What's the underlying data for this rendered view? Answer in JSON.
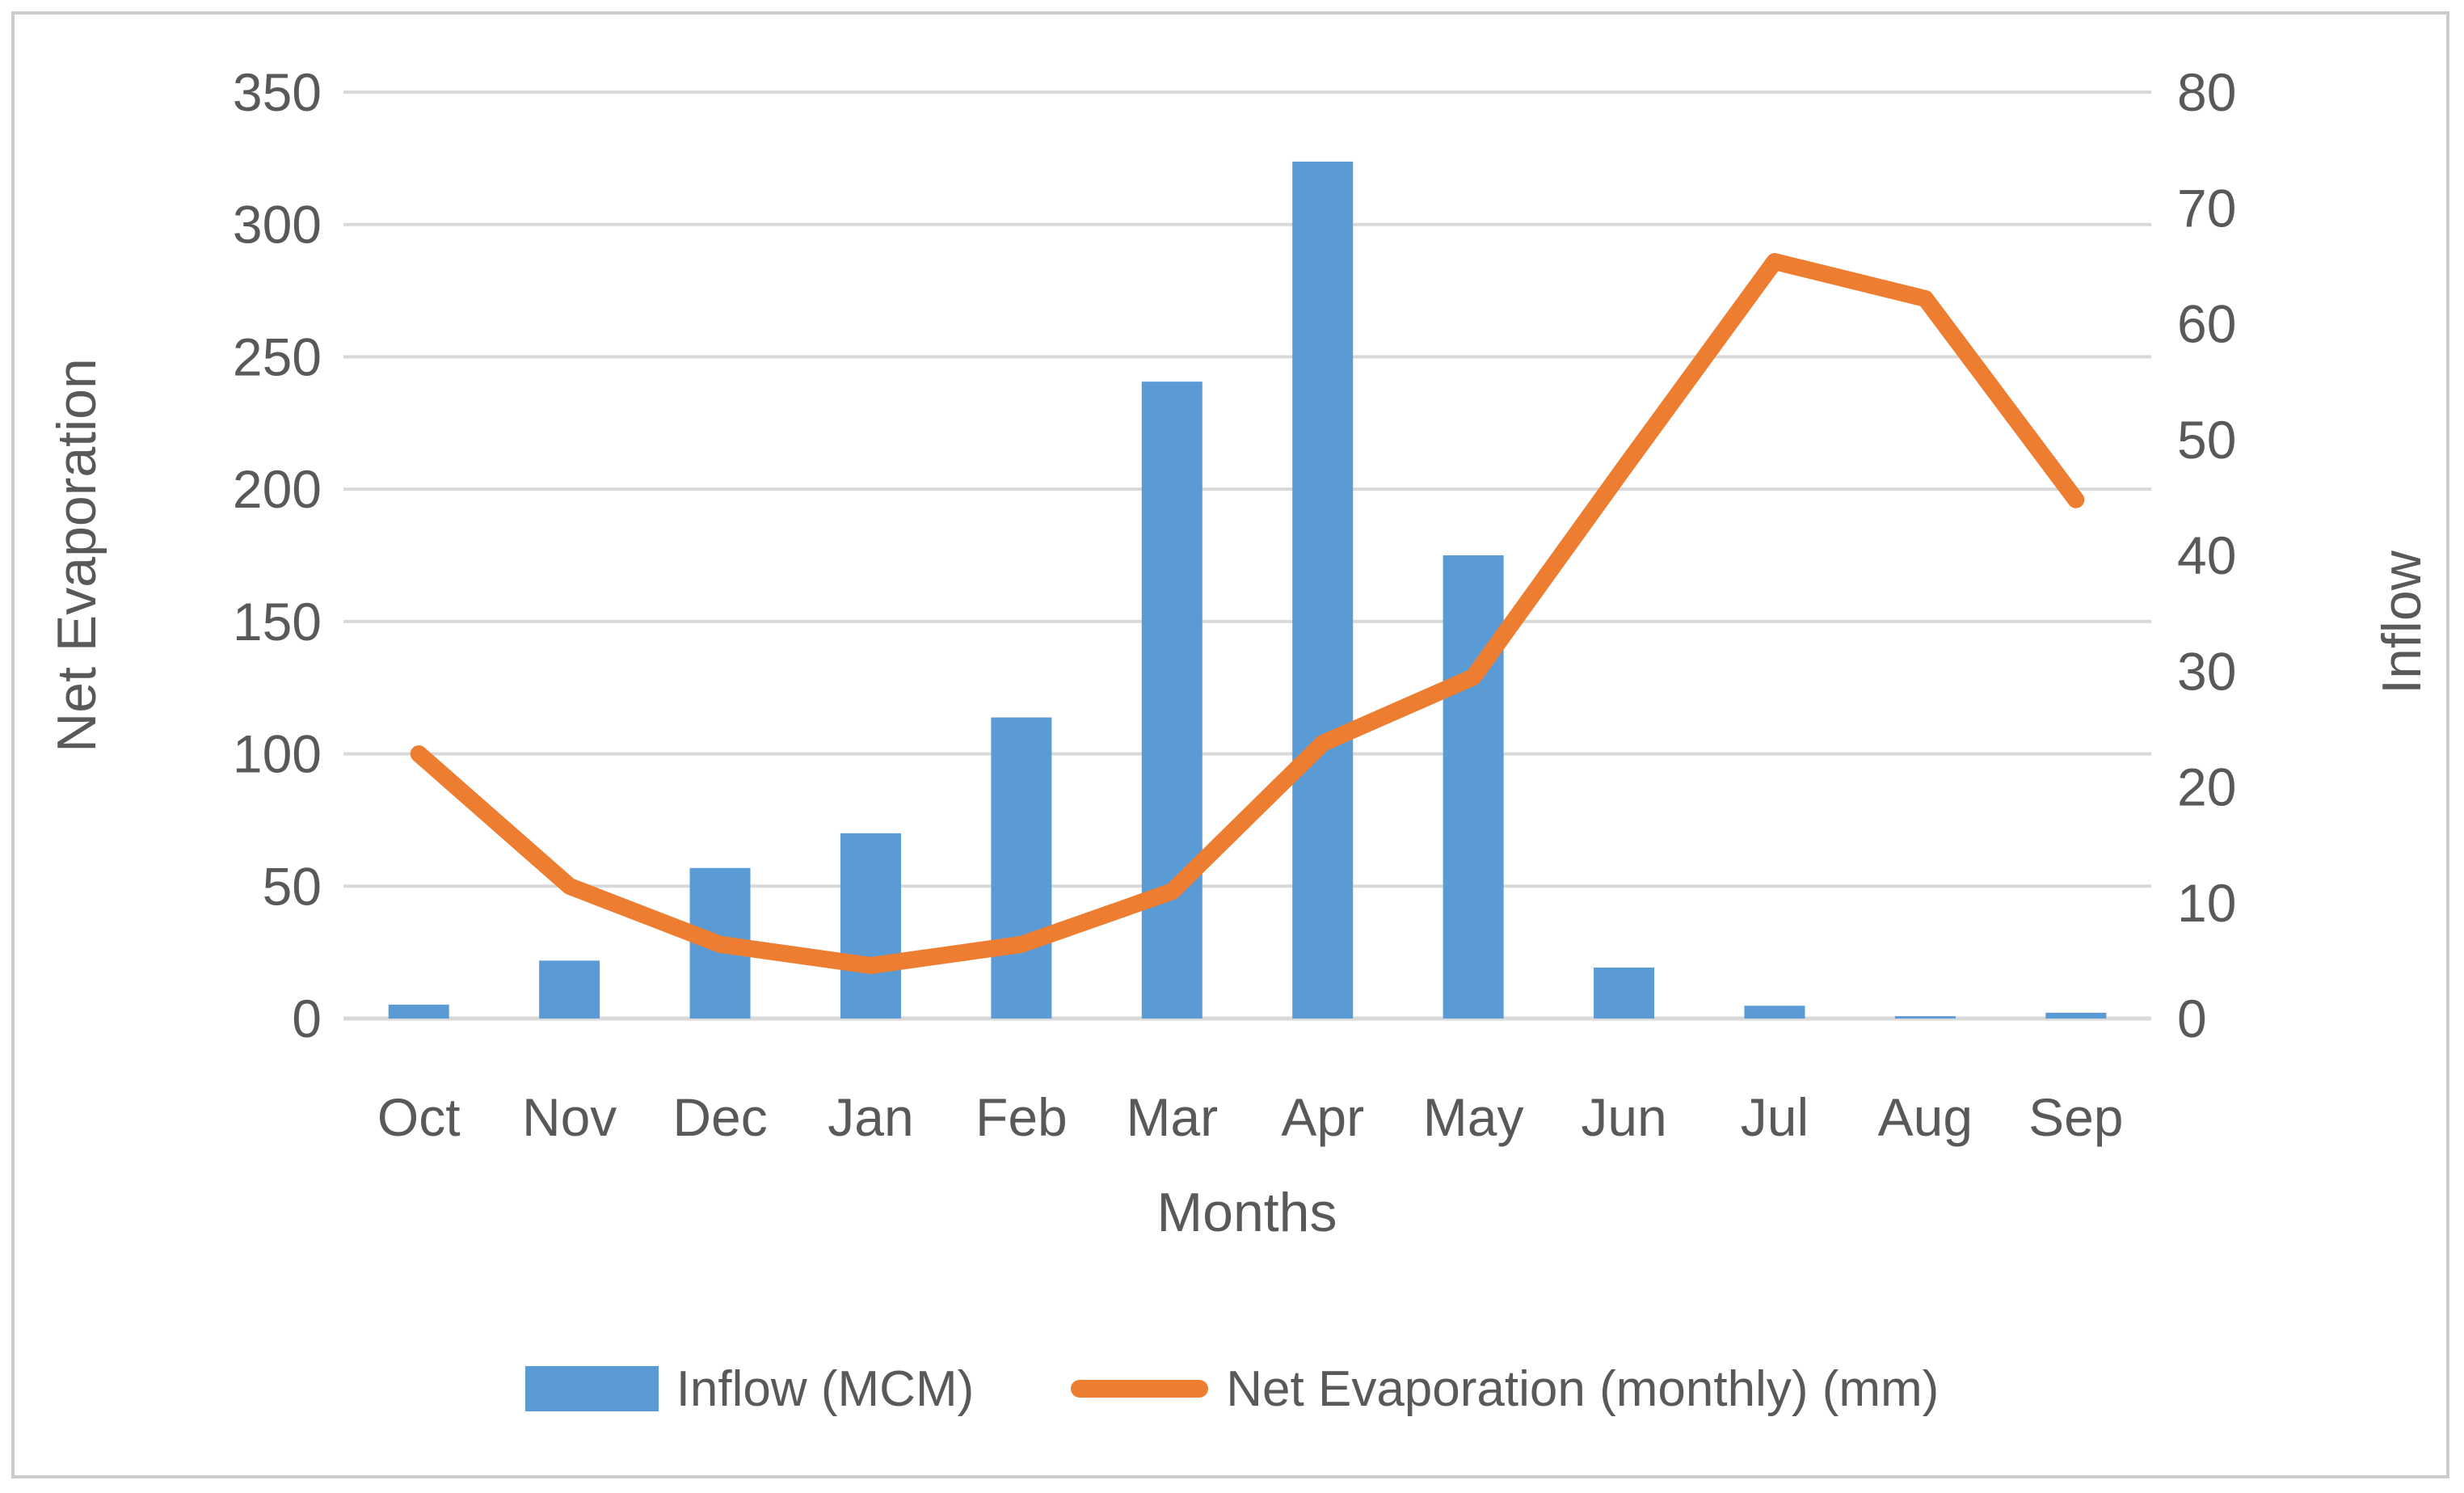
{
  "chart_data": {
    "type": "bar+line",
    "categories": [
      "Oct",
      "Nov",
      "Dec",
      "Jan",
      "Feb",
      "Mar",
      "Apr",
      "May",
      "Jun",
      "Jul",
      "Aug",
      "Sep"
    ],
    "series": [
      {
        "name": "Inflow (MCM)",
        "type": "bar",
        "axis": "right",
        "color": "#5B9BD5",
        "values": [
          1.2,
          5,
          13,
          16,
          26,
          55,
          74,
          40,
          4.4,
          1.1,
          0.2,
          0.5
        ]
      },
      {
        "name": "Net Evaporation (monthly) (mm)",
        "type": "line",
        "axis": "left",
        "color": "#ED7D31",
        "values": [
          100,
          50,
          28,
          20,
          28,
          48,
          104,
          129,
          208,
          286,
          272,
          196
        ]
      }
    ],
    "left_axis": {
      "title": "Net Evaporation",
      "min": 0,
      "max": 350,
      "step": 50,
      "tick_labels": [
        "0",
        "50",
        "100",
        "150",
        "200",
        "250",
        "300",
        "350"
      ]
    },
    "right_axis": {
      "title": "Inflow",
      "min": 0,
      "max": 80,
      "step": 10,
      "tick_labels": [
        "0",
        "10",
        "20",
        "30",
        "40",
        "50",
        "60",
        "70",
        "80"
      ]
    },
    "x_axis": {
      "title": "Months"
    },
    "grid": true,
    "legend_position": "bottom",
    "colors": {
      "gridline": "#D9D9D9",
      "text": "#595959",
      "frame_border": "#CBCBCB",
      "background": "#FFFFFF"
    }
  }
}
